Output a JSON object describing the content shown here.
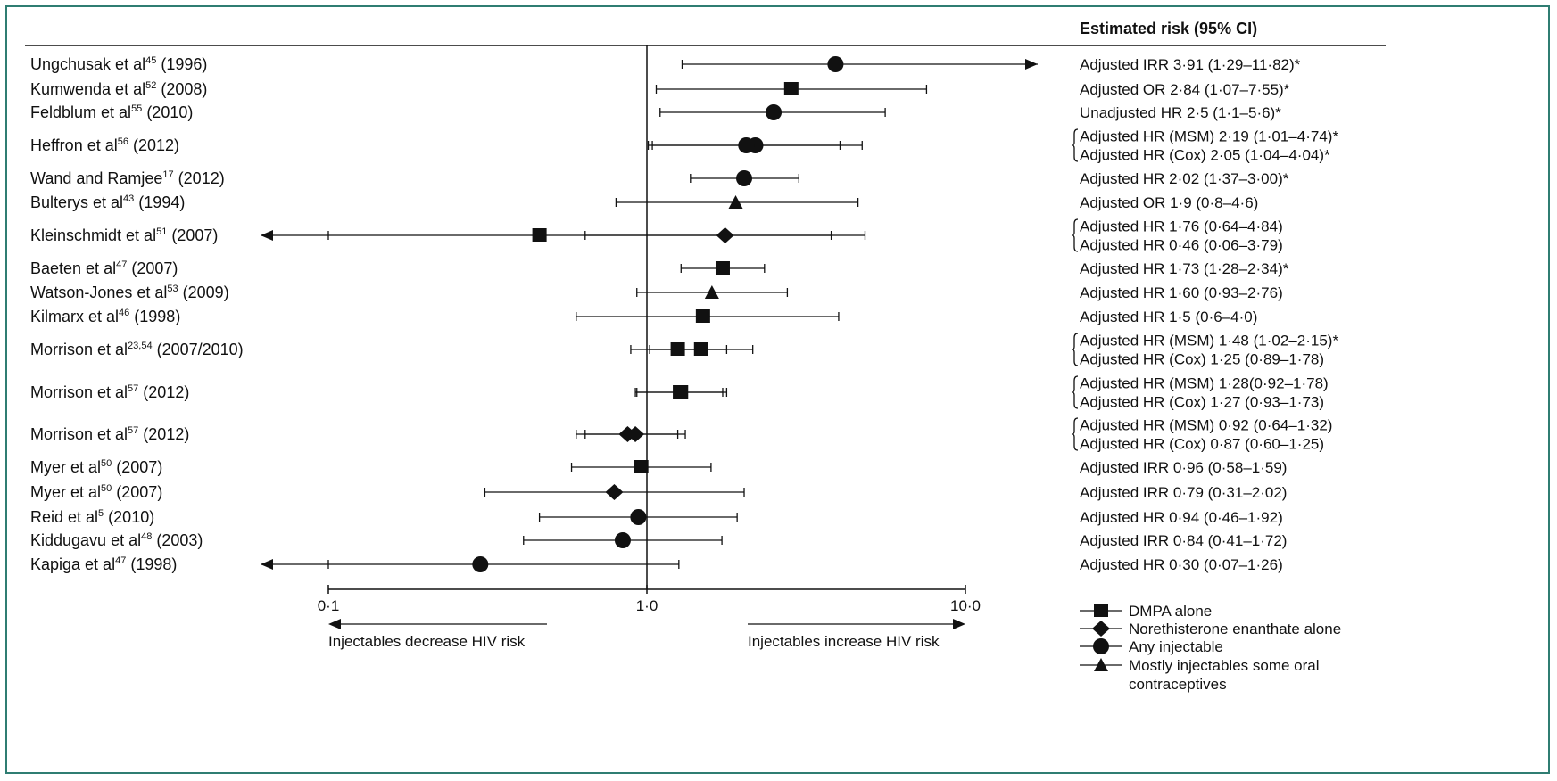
{
  "chart_data": {
    "type": "forest",
    "x_scale": "log",
    "xlim": [
      0.1,
      10.0
    ],
    "ticks": [
      0.1,
      1.0,
      10.0
    ],
    "tick_labels": [
      "0·1",
      "1·0",
      "10·0"
    ],
    "reference_line": 1.0,
    "header": "Estimated risk (95% CI)",
    "left_direction_label": "Injectables decrease HIV risk",
    "right_direction_label": "Injectables increase HIV risk",
    "legend": [
      {
        "symbol": "square",
        "label": "DMPA alone"
      },
      {
        "symbol": "diamond",
        "label": "Norethisterone enanthate alone"
      },
      {
        "symbol": "circle",
        "label": "Any injectable"
      },
      {
        "symbol": "triangle",
        "label": [
          "Mostly injectables some oral",
          "contraceptives"
        ]
      }
    ],
    "studies": [
      {
        "study": "Ungchusak et al",
        "ref": "45",
        "year": "(1996)",
        "estimates": [
          {
            "symbol": "circle",
            "point": 3.91,
            "lo": 1.29,
            "hi": 11.82,
            "hi_arrow": true
          }
        ],
        "labels": [
          "Adjusted IRR 3·91 (1·29–11·82)*"
        ]
      },
      {
        "study": "Kumwenda et al",
        "ref": "52",
        "year": "(2008)",
        "estimates": [
          {
            "symbol": "square",
            "point": 2.84,
            "lo": 1.07,
            "hi": 7.55
          }
        ],
        "labels": [
          "Adjusted OR 2·84 (1·07–7·55)*"
        ]
      },
      {
        "study": "Feldblum et al",
        "ref": "55",
        "year": "(2010)",
        "estimates": [
          {
            "symbol": "circle",
            "point": 2.5,
            "lo": 1.1,
            "hi": 5.6
          }
        ],
        "labels": [
          "Unadjusted HR 2·5 (1·1–5·6)*"
        ]
      },
      {
        "study": "Heffron et al",
        "ref": "56",
        "year": "(2012)",
        "estimates": [
          {
            "symbol": "circle",
            "point": 2.19,
            "lo": 1.01,
            "hi": 4.74
          },
          {
            "symbol": "circle",
            "point": 2.05,
            "lo": 1.04,
            "hi": 4.04
          }
        ],
        "labels": [
          "Adjusted HR (MSM) 2·19 (1·01–4·74)*",
          "Adjusted HR (Cox) 2·05 (1·04–4·04)*"
        ]
      },
      {
        "study": "Wand and Ramjee",
        "ref": "17",
        "year": "(2012)",
        "estimates": [
          {
            "symbol": "circle",
            "point": 2.02,
            "lo": 1.37,
            "hi": 3.0
          }
        ],
        "labels": [
          "Adjusted HR 2·02 (1·37–3·00)*"
        ]
      },
      {
        "study": "Bulterys et al",
        "ref": "43",
        "year": "(1994)",
        "estimates": [
          {
            "symbol": "triangle",
            "point": 1.9,
            "lo": 0.8,
            "hi": 4.6
          }
        ],
        "labels": [
          "Adjusted OR 1·9 (0·8–4·6)"
        ]
      },
      {
        "study": "Kleinschmidt et al",
        "ref": "51",
        "year": "(2007)",
        "estimates": [
          {
            "symbol": "diamond",
            "point": 1.76,
            "lo": 0.64,
            "hi": 4.84
          },
          {
            "symbol": "square",
            "point": 0.46,
            "lo": 0.06,
            "hi": 3.79,
            "lo_arrow": true
          }
        ],
        "labels": [
          "Adjusted HR 1·76 (0·64–4·84)",
          "Adjusted HR 0·46 (0·06–3·79)"
        ]
      },
      {
        "study": "Baeten et al",
        "ref": "47",
        "year": "(2007)",
        "estimates": [
          {
            "symbol": "square",
            "point": 1.73,
            "lo": 1.28,
            "hi": 2.34
          }
        ],
        "labels": [
          "Adjusted HR 1·73 (1·28–2·34)*"
        ]
      },
      {
        "study": "Watson-Jones et al",
        "ref": "53",
        "year": "(2009)",
        "estimates": [
          {
            "symbol": "triangle",
            "point": 1.6,
            "lo": 0.93,
            "hi": 2.76
          }
        ],
        "labels": [
          "Adjusted HR 1·60 (0·93–2·76)"
        ]
      },
      {
        "study": "Kilmarx et al",
        "ref": "46",
        "year": "(1998)",
        "estimates": [
          {
            "symbol": "square",
            "point": 1.5,
            "lo": 0.6,
            "hi": 4.0
          }
        ],
        "labels": [
          "Adjusted HR 1·5 (0·6–4·0)"
        ]
      },
      {
        "study": "Morrison et al",
        "ref": "23,54",
        "year": "(2007/2010)",
        "estimates": [
          {
            "symbol": "square",
            "point": 1.48,
            "lo": 1.02,
            "hi": 2.15
          },
          {
            "symbol": "square",
            "point": 1.25,
            "lo": 0.89,
            "hi": 1.78
          }
        ],
        "labels": [
          "Adjusted HR (MSM) 1·48 (1·02–2·15)*",
          "Adjusted HR (Cox) 1·25 (0·89–1·78)"
        ]
      },
      {
        "study": "Morrison et al",
        "ref": "57",
        "year": "(2012)",
        "estimates": [
          {
            "symbol": "square",
            "point": 1.28,
            "lo": 0.92,
            "hi": 1.78
          },
          {
            "symbol": "square",
            "point": 1.27,
            "lo": 0.93,
            "hi": 1.73
          }
        ],
        "labels": [
          "Adjusted HR (MSM) 1·28(0·92–1·78)",
          "Adjusted HR (Cox) 1·27 (0·93–1·73)"
        ]
      },
      {
        "study": "Morrison et al",
        "ref": "57",
        "year": "(2012)",
        "estimates": [
          {
            "symbol": "diamond",
            "point": 0.92,
            "lo": 0.64,
            "hi": 1.32
          },
          {
            "symbol": "diamond",
            "point": 0.87,
            "lo": 0.6,
            "hi": 1.25
          }
        ],
        "labels": [
          "Adjusted HR (MSM) 0·92 (0·64–1·32)",
          "Adjusted HR (Cox) 0·87 (0·60–1·25)"
        ]
      },
      {
        "study": "Myer et al",
        "ref": "50",
        "year": "(2007)",
        "estimates": [
          {
            "symbol": "square",
            "point": 0.96,
            "lo": 0.58,
            "hi": 1.59
          }
        ],
        "labels": [
          "Adjusted IRR 0·96 (0·58–1·59)"
        ]
      },
      {
        "study": "Myer et al",
        "ref": "50",
        "year": "(2007)",
        "estimates": [
          {
            "symbol": "diamond",
            "point": 0.79,
            "lo": 0.31,
            "hi": 2.02
          }
        ],
        "labels": [
          "Adjusted IRR 0·79 (0·31–2·02)"
        ]
      },
      {
        "study": "Reid et al",
        "ref": "5",
        "year": "(2010)",
        "estimates": [
          {
            "symbol": "circle",
            "point": 0.94,
            "lo": 0.46,
            "hi": 1.92
          }
        ],
        "labels": [
          "Adjusted HR 0·94 (0·46–1·92)"
        ]
      },
      {
        "study": "Kiddugavu et al",
        "ref": "48",
        "year": "(2003)",
        "estimates": [
          {
            "symbol": "circle",
            "point": 0.84,
            "lo": 0.41,
            "hi": 1.72
          }
        ],
        "labels": [
          "Adjusted IRR 0·84 (0·41–1·72)"
        ]
      },
      {
        "study": "Kapiga et al",
        "ref": "47",
        "year": "(1998)",
        "estimates": [
          {
            "symbol": "circle",
            "point": 0.3,
            "lo": 0.07,
            "hi": 1.26,
            "lo_arrow": true
          }
        ],
        "labels": [
          "Adjusted HR 0·30 (0·07–1·26)"
        ]
      }
    ]
  }
}
